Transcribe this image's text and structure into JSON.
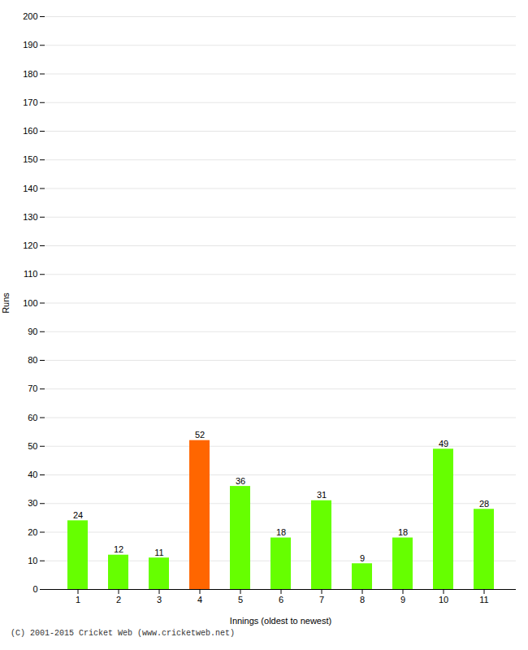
{
  "chart_data": {
    "type": "bar",
    "categories": [
      "1",
      "2",
      "3",
      "4",
      "5",
      "6",
      "7",
      "8",
      "9",
      "10",
      "11"
    ],
    "values": [
      24,
      12,
      11,
      52,
      36,
      18,
      31,
      9,
      18,
      49,
      28
    ],
    "colors": [
      "#66ff00",
      "#66ff00",
      "#66ff00",
      "#ff6600",
      "#66ff00",
      "#66ff00",
      "#66ff00",
      "#66ff00",
      "#66ff00",
      "#66ff00",
      "#66ff00"
    ],
    "xlabel": "Innings (oldest to newest)",
    "ylabel": "Runs",
    "ylim": [
      0,
      200
    ],
    "yticks": [
      0,
      10,
      20,
      30,
      40,
      50,
      60,
      70,
      80,
      90,
      100,
      110,
      120,
      130,
      140,
      150,
      160,
      170,
      180,
      190,
      200
    ],
    "grid": true,
    "data_labels": true,
    "footer": "(C) 2001-2015 Cricket Web (www.cricketweb.net)"
  }
}
